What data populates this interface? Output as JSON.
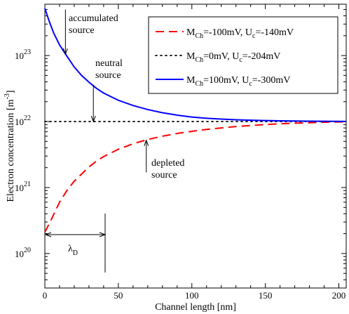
{
  "chart_data": {
    "type": "line",
    "xlabel": "Channel length [nm]",
    "ylabel": "Electron concentration [m",
    "ylabel_unit_exp": "-3",
    "xlim": [
      0,
      205
    ],
    "ylim": [
      3e+19,
      6e+23
    ],
    "yscale": "log",
    "x_ticks": [
      0,
      50,
      100,
      150,
      200
    ],
    "y_ticks": [
      {
        "value": 1e+20,
        "base": "10",
        "exp": "20"
      },
      {
        "value": 1e+21,
        "base": "10",
        "exp": "21"
      },
      {
        "value": 1e+22,
        "base": "10",
        "exp": "22"
      },
      {
        "value": 1e+23,
        "base": "10",
        "exp": "23"
      }
    ],
    "legend_position": "top-right",
    "series": [
      {
        "name": "M_Ch=-100mV, U_c=-140mV",
        "legend": {
          "a": "M",
          "a_sub": "Ch",
          "b": "=-100mV, U",
          "b_sub": "c",
          "c": "=-140mV"
        },
        "color": "#ff0000",
        "dash": "dashed",
        "x": [
          0,
          5,
          10,
          15,
          20,
          25,
          30,
          35,
          40,
          50,
          60,
          70,
          80,
          90,
          100,
          110,
          120,
          130,
          140,
          150,
          160,
          170,
          180,
          190,
          200,
          205
        ],
        "y": [
          2.1e+20,
          3.5e+20,
          6e+20,
          9e+20,
          1.25e+21,
          1.6e+21,
          2.05e+21,
          2.5e+21,
          2.95e+21,
          3.8e+21,
          4.6e+21,
          5.35e+21,
          6e+21,
          6.6e+21,
          7.1e+21,
          7.6e+21,
          8e+21,
          8.4e+21,
          8.7e+21,
          9e+21,
          9.25e+21,
          9.45e+21,
          9.6e+21,
          9.75e+21,
          9.85e+21,
          9.9e+21
        ]
      },
      {
        "name": "M_Ch=0mV, U_c=-204mV",
        "legend": {
          "a": "M",
          "a_sub": "Ch",
          "b": "=0mV, U",
          "b_sub": "c",
          "c": "=-204mV"
        },
        "color": "#000000",
        "dash": "dotted",
        "x": [
          0,
          205
        ],
        "y": [
          1e+22,
          1e+22
        ]
      },
      {
        "name": "M_Ch=100mV, U_c=-300mV",
        "legend": {
          "a": "M",
          "a_sub": "Ch",
          "b": "=100mV, U",
          "b_sub": "c",
          "c": "=-300mV"
        },
        "color": "#0000ff",
        "dash": "solid",
        "x": [
          0,
          3,
          6,
          10,
          15,
          20,
          25,
          30,
          35,
          40,
          50,
          60,
          70,
          80,
          90,
          100,
          110,
          120,
          130,
          140,
          150,
          160,
          170,
          180,
          190,
          200,
          205
        ],
        "y": [
          5.2e+23,
          3.3e+23,
          2.2e+23,
          1.45e+23,
          9.8e+22,
          6.7e+22,
          5e+22,
          3.95e+22,
          3.2e+22,
          2.7e+22,
          2.1e+22,
          1.75e+22,
          1.52e+22,
          1.36e+22,
          1.25e+22,
          1.17e+22,
          1.12e+22,
          1.09e+22,
          1.065e+22,
          1.048e+22,
          1.035e+22,
          1.025e+22,
          1.018e+22,
          1.013e+22,
          1.009e+22,
          1.006e+22,
          1.005e+22
        ]
      }
    ],
    "annotations": [
      {
        "lines": [
          "accumulated",
          "source"
        ],
        "arrow_x": 14,
        "arrow_from_y": 5e+23,
        "arrow_to_y": 1.05e+23
      },
      {
        "lines": [
          "neutral",
          "source"
        ],
        "arrow_x": 33,
        "arrow_from_y": 3.6e+22,
        "arrow_to_y": 1e+22
      },
      {
        "lines": [
          "depleted",
          "source"
        ],
        "arrow_x": 69,
        "arrow_from_y": 1.7e+21,
        "arrow_to_y": 5.2e+21
      }
    ],
    "lambda": {
      "label": "λ",
      "sub": "D",
      "x_start": 0,
      "x_end": 41
    }
  }
}
